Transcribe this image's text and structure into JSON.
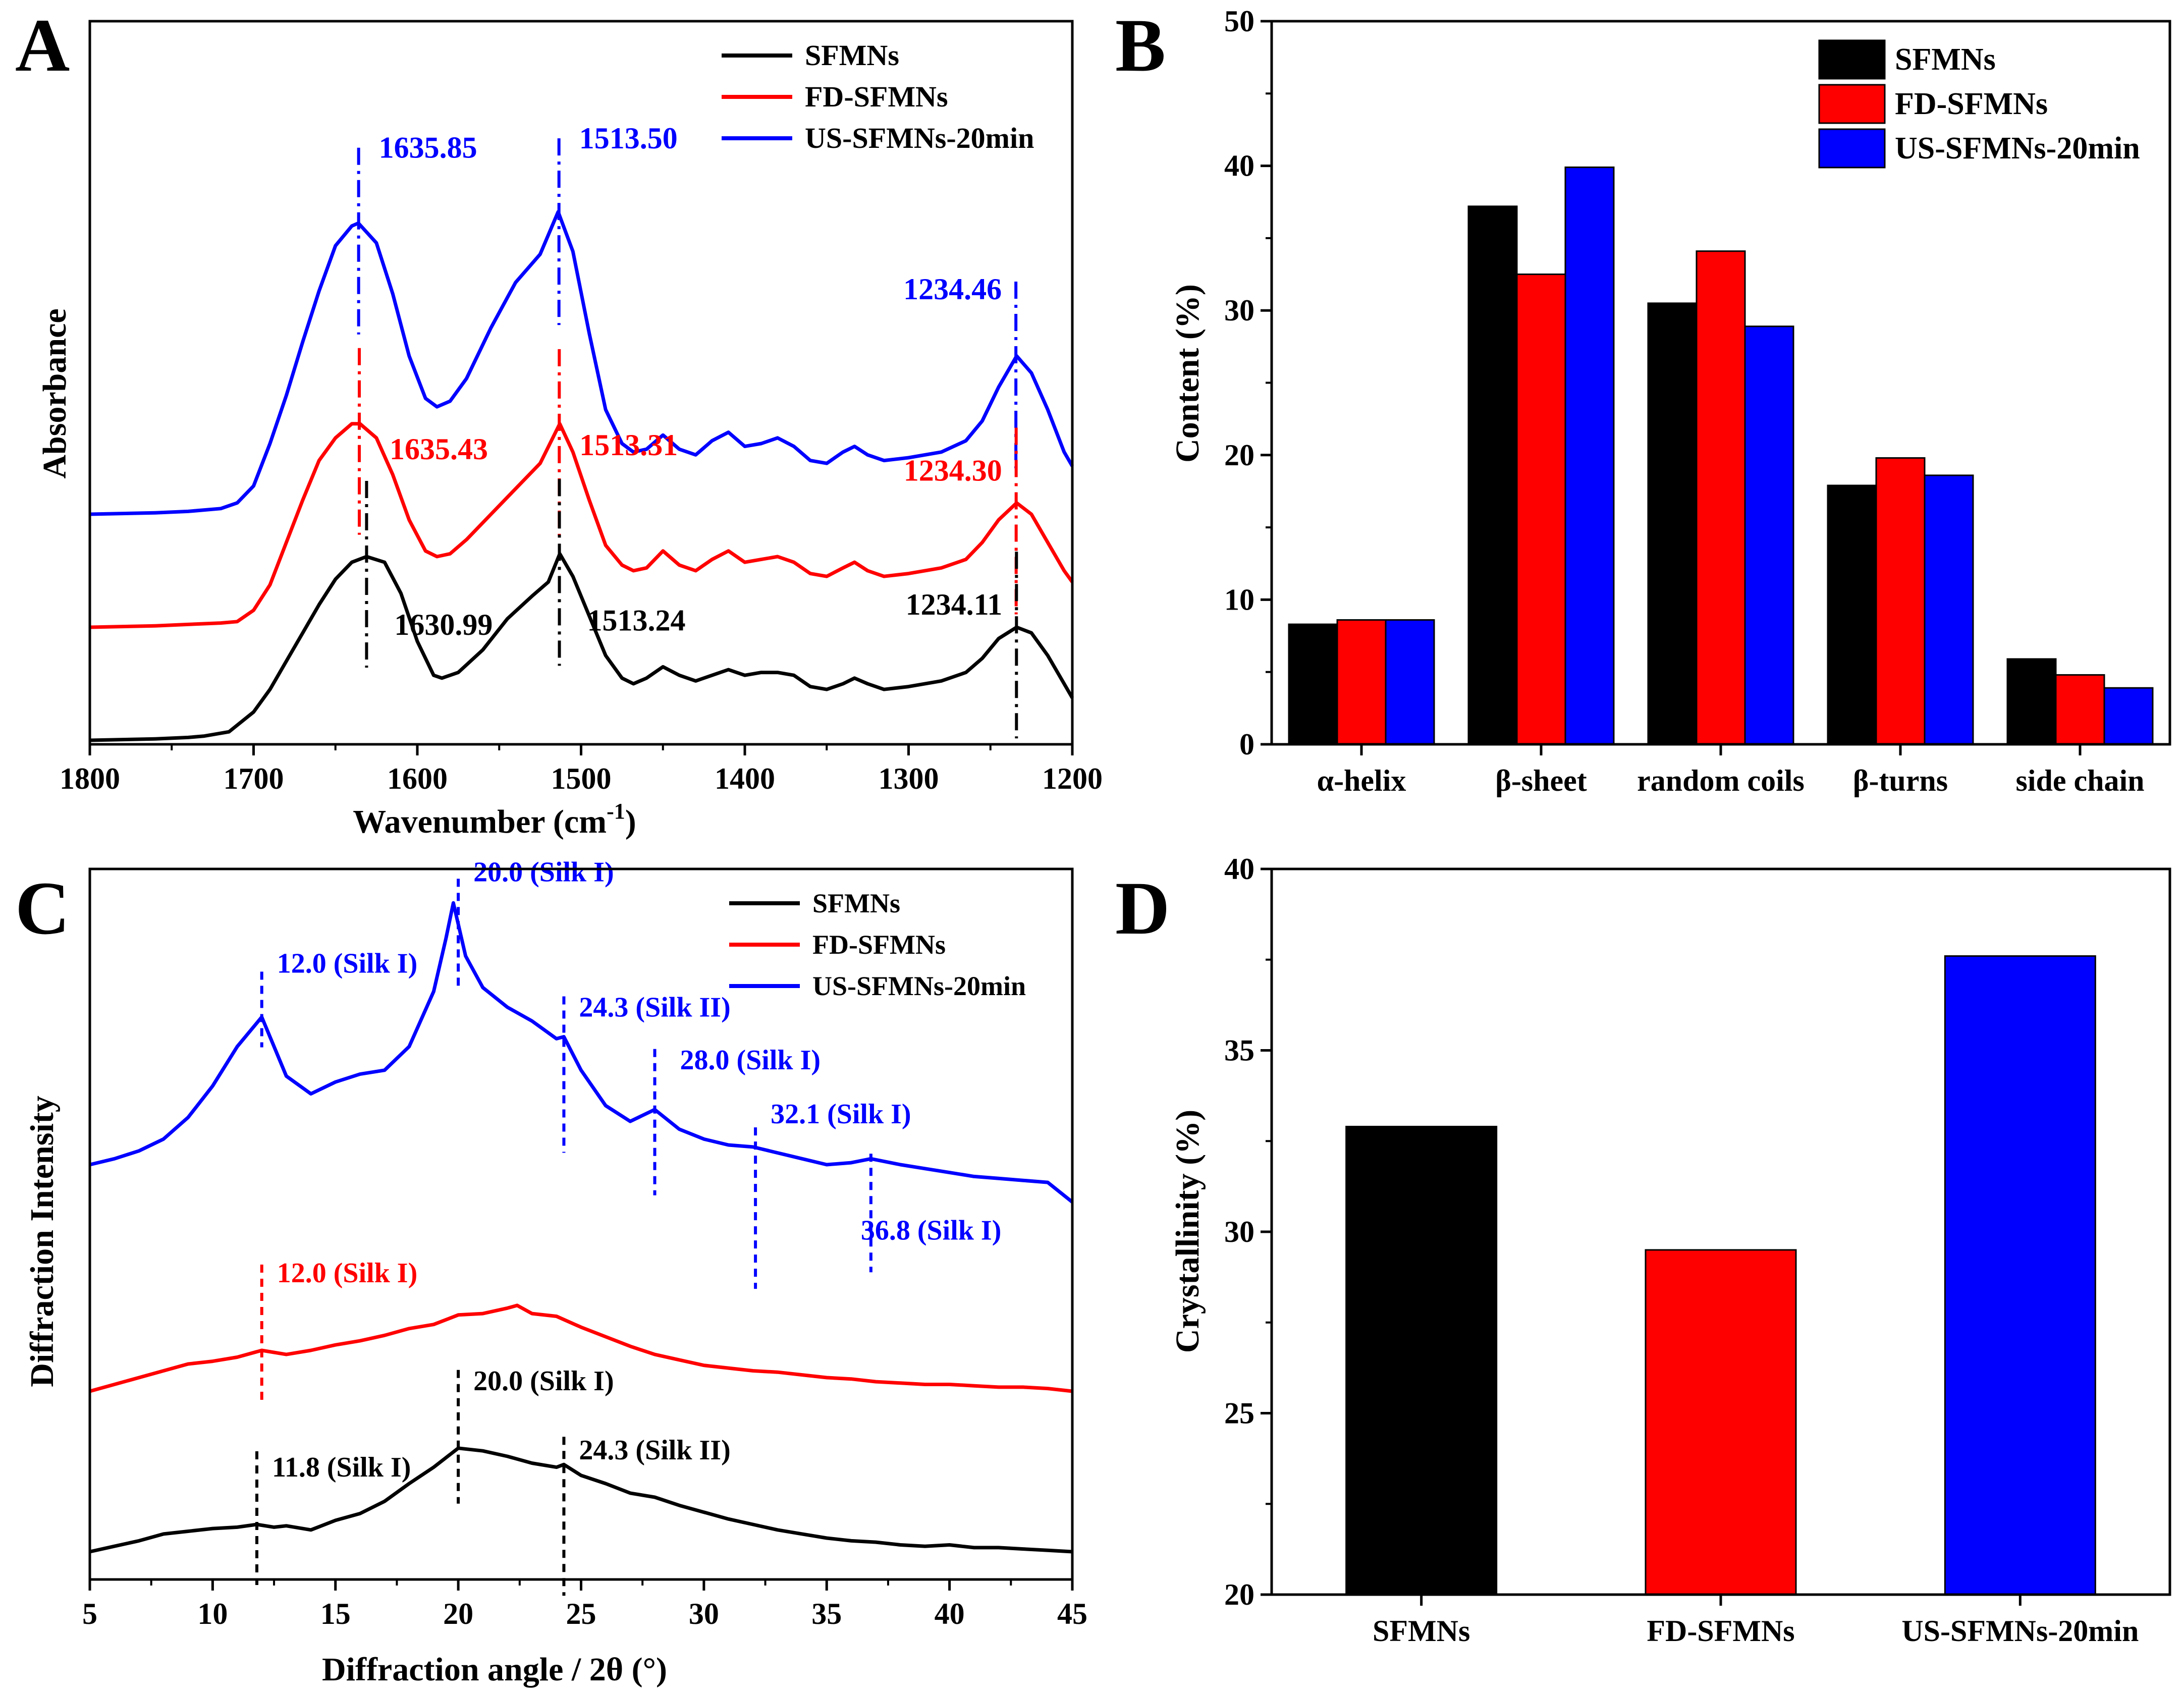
{
  "chart_data": [
    {
      "panel": "A",
      "type": "line",
      "xlabel": "Wavenumber (cm",
      "xlabel_sup": "-1",
      "xlabel_end": ")",
      "ylabel": "Absorbance",
      "xlim": [
        1800,
        1200
      ],
      "xticks": [
        "1800",
        "1700",
        "1600",
        "1500",
        "1400",
        "1300",
        "1200"
      ],
      "y_ticks_shown": false,
      "series": [
        {
          "name": "SFMNs",
          "color": "#000000",
          "offset": 0.0,
          "x": [
            1800,
            1760,
            1740,
            1730,
            1715,
            1700,
            1690,
            1680,
            1670,
            1660,
            1650,
            1640,
            1631,
            1620,
            1610,
            1600,
            1590,
            1585,
            1575,
            1560,
            1545,
            1530,
            1520,
            1513,
            1505,
            1495,
            1485,
            1475,
            1468,
            1460,
            1450,
            1440,
            1430,
            1420,
            1410,
            1400,
            1390,
            1380,
            1370,
            1360,
            1350,
            1340,
            1333,
            1325,
            1315,
            1300,
            1280,
            1265,
            1255,
            1245,
            1234,
            1225,
            1215,
            1205,
            1200
          ],
          "y": [
            0.0,
            0.005,
            0.01,
            0.015,
            0.03,
            0.1,
            0.18,
            0.28,
            0.38,
            0.48,
            0.57,
            0.63,
            0.65,
            0.63,
            0.52,
            0.35,
            0.23,
            0.22,
            0.24,
            0.32,
            0.43,
            0.51,
            0.56,
            0.66,
            0.58,
            0.44,
            0.3,
            0.22,
            0.2,
            0.22,
            0.26,
            0.23,
            0.21,
            0.23,
            0.25,
            0.23,
            0.24,
            0.24,
            0.23,
            0.19,
            0.18,
            0.2,
            0.22,
            0.2,
            0.18,
            0.19,
            0.21,
            0.24,
            0.29,
            0.36,
            0.4,
            0.38,
            0.3,
            0.2,
            0.15
          ]
        },
        {
          "name": "FD-SFMNs",
          "color": "#ff0000",
          "offset": 0.4,
          "x": [
            1800,
            1760,
            1740,
            1720,
            1710,
            1700,
            1690,
            1680,
            1670,
            1660,
            1650,
            1640,
            1635,
            1625,
            1615,
            1605,
            1595,
            1588,
            1580,
            1570,
            1555,
            1540,
            1525,
            1513,
            1505,
            1495,
            1485,
            1475,
            1468,
            1460,
            1450,
            1440,
            1430,
            1420,
            1410,
            1400,
            1390,
            1380,
            1370,
            1360,
            1350,
            1340,
            1333,
            1325,
            1315,
            1300,
            1280,
            1265,
            1255,
            1245,
            1234,
            1225,
            1215,
            1205,
            1200
          ],
          "y": [
            0.0,
            0.005,
            0.01,
            0.015,
            0.02,
            0.06,
            0.15,
            0.3,
            0.45,
            0.59,
            0.67,
            0.72,
            0.72,
            0.67,
            0.54,
            0.38,
            0.27,
            0.25,
            0.26,
            0.31,
            0.4,
            0.49,
            0.58,
            0.72,
            0.62,
            0.45,
            0.29,
            0.22,
            0.2,
            0.21,
            0.27,
            0.22,
            0.2,
            0.24,
            0.27,
            0.23,
            0.24,
            0.25,
            0.23,
            0.19,
            0.18,
            0.21,
            0.23,
            0.2,
            0.18,
            0.19,
            0.21,
            0.24,
            0.3,
            0.38,
            0.44,
            0.4,
            0.3,
            0.2,
            0.16
          ]
        },
        {
          "name": "US-SFMNs-20min",
          "color": "#0000ff",
          "offset": 0.8,
          "x": [
            1800,
            1760,
            1740,
            1720,
            1710,
            1700,
            1690,
            1680,
            1670,
            1660,
            1650,
            1640,
            1636,
            1625,
            1615,
            1605,
            1595,
            1588,
            1580,
            1570,
            1555,
            1540,
            1525,
            1514,
            1505,
            1495,
            1485,
            1475,
            1468,
            1460,
            1450,
            1440,
            1430,
            1420,
            1410,
            1400,
            1390,
            1380,
            1370,
            1360,
            1350,
            1340,
            1333,
            1325,
            1315,
            1300,
            1280,
            1265,
            1255,
            1245,
            1234,
            1225,
            1215,
            1205,
            1200
          ],
          "y": [
            0.0,
            0.005,
            0.01,
            0.02,
            0.04,
            0.1,
            0.25,
            0.42,
            0.61,
            0.79,
            0.95,
            1.02,
            1.03,
            0.96,
            0.78,
            0.56,
            0.41,
            0.38,
            0.4,
            0.48,
            0.66,
            0.82,
            0.92,
            1.07,
            0.93,
            0.64,
            0.37,
            0.25,
            0.22,
            0.23,
            0.28,
            0.23,
            0.21,
            0.26,
            0.29,
            0.24,
            0.25,
            0.27,
            0.24,
            0.19,
            0.18,
            0.22,
            0.24,
            0.21,
            0.19,
            0.2,
            0.22,
            0.26,
            0.33,
            0.45,
            0.56,
            0.5,
            0.37,
            0.22,
            0.17
          ]
        }
      ],
      "peaks": [
        {
          "series": "US-SFMNs-20min",
          "x": 1635.85,
          "label": "1635.85"
        },
        {
          "series": "US-SFMNs-20min",
          "x": 1513.5,
          "label": "1513.50"
        },
        {
          "series": "US-SFMNs-20min",
          "x": 1234.46,
          "label": "1234.46"
        },
        {
          "series": "FD-SFMNs",
          "x": 1635.43,
          "label": "1635.43"
        },
        {
          "series": "FD-SFMNs",
          "x": 1513.31,
          "label": "1513.31"
        },
        {
          "series": "FD-SFMNs",
          "x": 1234.3,
          "label": "1234.30"
        },
        {
          "series": "SFMNs",
          "x": 1630.99,
          "label": "1630.99"
        },
        {
          "series": "SFMNs",
          "x": 1513.24,
          "label": "1513.24"
        },
        {
          "series": "SFMNs",
          "x": 1234.11,
          "label": "1234.11"
        }
      ],
      "legend": [
        "SFMNs",
        "FD-SFMNs",
        "US-SFMNs-20min"
      ],
      "legend_position": "top-right"
    },
    {
      "panel": "B",
      "type": "bar",
      "ylabel": "Content (%)",
      "ylim": [
        0,
        50
      ],
      "yticks": [
        "0",
        "10",
        "20",
        "30",
        "40",
        "50"
      ],
      "categories": [
        "α-helix",
        "β-sheet",
        "random coils",
        "β-turns",
        "side chain"
      ],
      "series": [
        {
          "name": "SFMNs",
          "color": "#000000",
          "values": [
            8.3,
            37.2,
            30.5,
            17.9,
            5.9
          ]
        },
        {
          "name": "FD-SFMNs",
          "color": "#ff0000",
          "values": [
            8.6,
            32.5,
            34.1,
            19.8,
            4.8
          ]
        },
        {
          "name": "US-SFMNs-20min",
          "color": "#0000ff",
          "values": [
            8.6,
            39.9,
            28.9,
            18.6,
            3.9
          ]
        }
      ],
      "legend": [
        "SFMNs",
        "FD-SFMNs",
        "US-SFMNs-20min"
      ],
      "legend_position": "top-right"
    },
    {
      "panel": "C",
      "type": "line",
      "xlabel": "Diffraction angle / 2θ (°)",
      "ylabel": "Diffraction Intensity",
      "xlim": [
        5,
        45
      ],
      "xticks": [
        "5",
        "10",
        "15",
        "20",
        "25",
        "30",
        "35",
        "40",
        "45"
      ],
      "y_ticks_shown": false,
      "series": [
        {
          "name": "SFMNs",
          "color": "#000000",
          "x": [
            5,
            6,
            7,
            8,
            9,
            10,
            11,
            11.8,
            12.5,
            13,
            14,
            15,
            16,
            17,
            18,
            19,
            20,
            21,
            22,
            23,
            24,
            24.3,
            25,
            26,
            27,
            28,
            29,
            30,
            31,
            32,
            33,
            34,
            35,
            36,
            37,
            38,
            39,
            40,
            41,
            42,
            43,
            44,
            45
          ],
          "y": [
            0.0,
            0.04,
            0.08,
            0.13,
            0.15,
            0.17,
            0.18,
            0.2,
            0.18,
            0.19,
            0.16,
            0.23,
            0.28,
            0.37,
            0.5,
            0.62,
            0.76,
            0.74,
            0.7,
            0.65,
            0.62,
            0.64,
            0.56,
            0.5,
            0.43,
            0.4,
            0.34,
            0.29,
            0.24,
            0.2,
            0.16,
            0.13,
            0.1,
            0.08,
            0.07,
            0.05,
            0.04,
            0.05,
            0.03,
            0.03,
            0.02,
            0.01,
            0.0
          ]
        },
        {
          "name": "FD-SFMNs",
          "color": "#ff0000",
          "x": [
            5,
            6,
            7,
            8,
            9,
            10,
            11,
            12,
            13,
            14,
            15,
            16,
            17,
            18,
            19,
            20,
            21,
            22,
            22.4,
            23,
            24,
            25,
            26,
            27,
            28,
            29,
            30,
            31,
            32,
            33,
            34,
            35,
            36,
            37,
            38,
            39,
            40,
            41,
            42,
            43,
            44,
            45
          ],
          "y": [
            0.0,
            0.05,
            0.1,
            0.15,
            0.2,
            0.22,
            0.25,
            0.3,
            0.27,
            0.3,
            0.34,
            0.37,
            0.41,
            0.46,
            0.49,
            0.56,
            0.57,
            0.61,
            0.63,
            0.57,
            0.55,
            0.47,
            0.4,
            0.33,
            0.27,
            0.23,
            0.19,
            0.17,
            0.15,
            0.14,
            0.12,
            0.1,
            0.09,
            0.07,
            0.06,
            0.05,
            0.05,
            0.04,
            0.03,
            0.03,
            0.02,
            0.0
          ]
        },
        {
          "name": "US-SFMNs-20min",
          "color": "#0000ff",
          "x": [
            5,
            6,
            7,
            8,
            9,
            10,
            11,
            12,
            12.5,
            13,
            14,
            15,
            16,
            17,
            18,
            19,
            19.5,
            19.8,
            20.3,
            21,
            22,
            23,
            24,
            24.3,
            25,
            26,
            27,
            28,
            29,
            30,
            31,
            32,
            33,
            34,
            35,
            36,
            36.8,
            38,
            39,
            40,
            41,
            42,
            43,
            44,
            45
          ],
          "y": [
            0.0,
            0.03,
            0.07,
            0.13,
            0.24,
            0.4,
            0.6,
            0.75,
            0.6,
            0.45,
            0.36,
            0.42,
            0.46,
            0.48,
            0.6,
            0.88,
            1.15,
            1.33,
            1.06,
            0.9,
            0.8,
            0.73,
            0.64,
            0.65,
            0.48,
            0.3,
            0.22,
            0.28,
            0.18,
            0.13,
            0.1,
            0.09,
            0.06,
            0.03,
            0.0,
            0.01,
            0.03,
            0.0,
            -0.02,
            -0.04,
            -0.06,
            -0.07,
            -0.08,
            -0.09,
            -0.19
          ]
        }
      ],
      "peaks": [
        {
          "series": "US-SFMNs-20min",
          "x": 12.0,
          "label": "12.0 (Silk I)"
        },
        {
          "series": "US-SFMNs-20min",
          "x": 20.0,
          "label": "20.0 (Silk I)"
        },
        {
          "series": "US-SFMNs-20min",
          "x": 24.3,
          "label": "24.3 (Silk II)"
        },
        {
          "series": "US-SFMNs-20min",
          "x": 28.0,
          "label": "28.0 (Silk I)"
        },
        {
          "series": "US-SFMNs-20min",
          "x": 32.1,
          "label": "32.1 (Silk I)"
        },
        {
          "series": "US-SFMNs-20min",
          "x": 36.8,
          "label": "36.8 (Silk I)"
        },
        {
          "series": "FD-SFMNs",
          "x": 12.0,
          "label": "12.0 (Silk I)"
        },
        {
          "series": "SFMNs",
          "x": 11.8,
          "label": "11.8 (Silk I)"
        },
        {
          "series": "SFMNs",
          "x": 20.0,
          "label": "20.0 (Silk I)"
        },
        {
          "series": "SFMNs",
          "x": 24.3,
          "label": "24.3 (Silk II)"
        }
      ],
      "legend": [
        "SFMNs",
        "FD-SFMNs",
        "US-SFMNs-20min"
      ],
      "legend_position": "top-right"
    },
    {
      "panel": "D",
      "type": "bar",
      "ylabel": "Crystallinity (%)",
      "ylim": [
        20,
        40
      ],
      "yticks": [
        "20",
        "25",
        "30",
        "35",
        "40"
      ],
      "categories": [
        "SFMNs",
        "FD-SFMNs",
        "US-SFMNs-20min"
      ],
      "colors": [
        "#000000",
        "#ff0000",
        "#0000ff"
      ],
      "values": [
        32.9,
        29.5,
        37.6
      ]
    }
  ]
}
